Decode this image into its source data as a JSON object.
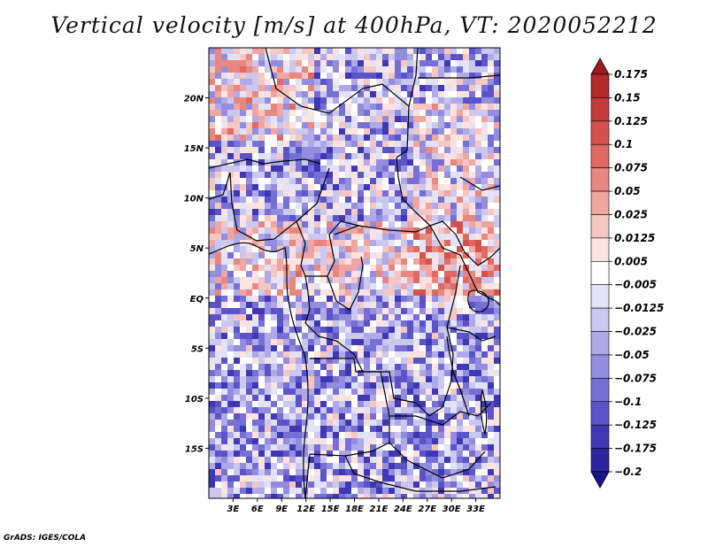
{
  "title": "Vertical velocity [m/s] at 400hPa, VT: 2020052212",
  "credit": "GrADS: IGES/COLA",
  "map": {
    "lon_range": [
      0,
      36
    ],
    "lat_range": [
      -20,
      25
    ],
    "lat_ticks": [
      {
        "lat": 20,
        "label": "20N"
      },
      {
        "lat": 15,
        "label": "15N"
      },
      {
        "lat": 10,
        "label": "10N"
      },
      {
        "lat": 5,
        "label": "5N"
      },
      {
        "lat": 0,
        "label": "EQ"
      },
      {
        "lat": -5,
        "label": "5S"
      },
      {
        "lat": -10,
        "label": "10S"
      },
      {
        "lat": -15,
        "label": "15S"
      }
    ],
    "lon_ticks": [
      {
        "lon": 3,
        "label": "3E"
      },
      {
        "lon": 6,
        "label": "6E"
      },
      {
        "lon": 9,
        "label": "9E"
      },
      {
        "lon": 12,
        "label": "12E"
      },
      {
        "lon": 15,
        "label": "15E"
      },
      {
        "lon": 18,
        "label": "18E"
      },
      {
        "lon": 21,
        "label": "21E"
      },
      {
        "lon": 24,
        "label": "24E"
      },
      {
        "lon": 27,
        "label": "27E"
      },
      {
        "lon": 30,
        "label": "30E"
      },
      {
        "lon": 33,
        "label": "33E"
      }
    ]
  },
  "colorbar": {
    "levels": [
      "0.175",
      "0.15",
      "0.125",
      "0.1",
      "0.075",
      "0.05",
      "0.025",
      "0.0125",
      "0.005",
      "-0.005",
      "-0.0125",
      "-0.025",
      "-0.05",
      "-0.075",
      "-0.1",
      "-0.125",
      "-0.175",
      "-0.2"
    ],
    "colors": [
      "#9e1a1f",
      "#b22a2a",
      "#c43c38",
      "#d3524b",
      "#df6a62",
      "#e8877f",
      "#f0a5a0",
      "#f6c6c3",
      "#fbe3e1",
      "#ffffff",
      "#e4e2f6",
      "#cbc8ef",
      "#afaae7",
      "#938ddf",
      "#7670d6",
      "#5a54c8",
      "#3f38b5",
      "#2b22a0",
      "#1c1290"
    ]
  }
}
